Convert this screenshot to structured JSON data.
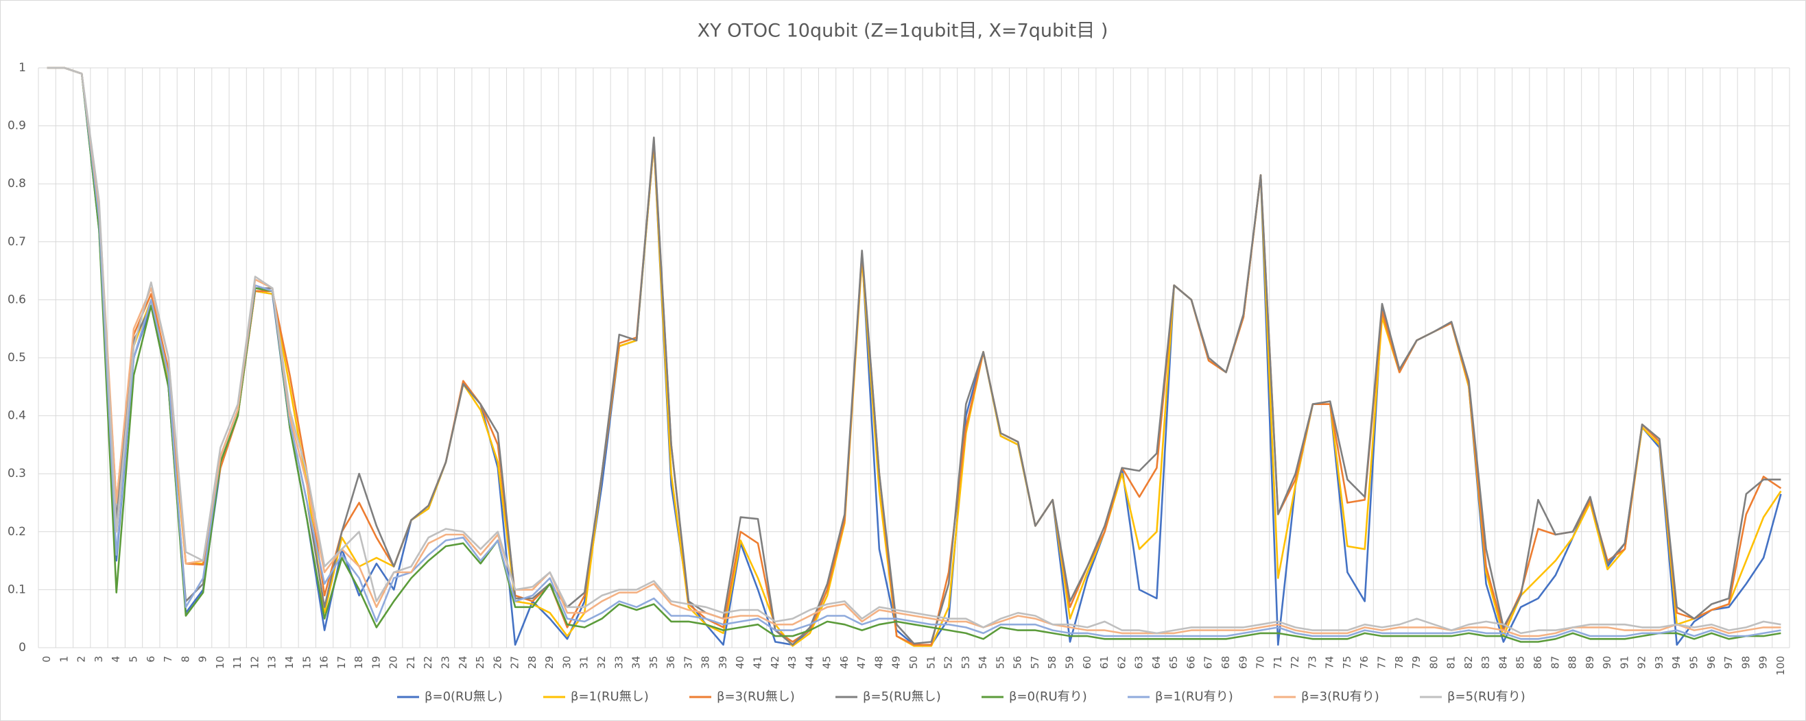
{
  "chart_data": {
    "type": "line",
    "title": "XY OTOC 10qubit (Z=1qubit目, X=7qubit目 )",
    "categories": [
      0,
      1,
      2,
      3,
      4,
      5,
      6,
      7,
      8,
      9,
      10,
      11,
      12,
      13,
      14,
      15,
      16,
      17,
      18,
      19,
      20,
      21,
      22,
      23,
      24,
      25,
      26,
      27,
      28,
      29,
      30,
      31,
      32,
      33,
      34,
      35,
      36,
      37,
      38,
      39,
      40,
      41,
      42,
      43,
      44,
      45,
      46,
      47,
      48,
      49,
      50,
      51,
      52,
      53,
      54,
      55,
      56,
      57,
      58,
      59,
      60,
      61,
      62,
      63,
      64,
      65,
      66,
      67,
      68,
      69,
      70,
      71,
      72,
      73,
      74,
      75,
      76,
      77,
      78,
      79,
      80,
      81,
      82,
      83,
      84,
      85,
      86,
      87,
      88,
      89,
      90,
      91,
      92,
      93,
      94,
      95,
      96,
      97,
      98,
      99,
      100
    ],
    "ylim": [
      0,
      1
    ],
    "yticks": [
      0,
      0.1,
      0.2,
      0.3,
      0.4,
      0.5,
      0.6,
      0.7,
      0.8,
      0.9,
      1
    ],
    "grid": true,
    "legend": "bottom",
    "series": [
      {
        "name": "β=0(RU無し)",
        "color": "#4472c4",
        "values": [
          1,
          1,
          0.99,
          0.72,
          0.15,
          0.5,
          0.59,
          0.45,
          0.06,
          0.1,
          0.31,
          0.4,
          0.615,
          0.61,
          0.38,
          0.22,
          0.03,
          0.17,
          0.09,
          0.145,
          0.1,
          0.22,
          0.24,
          0.32,
          0.455,
          0.42,
          0.31,
          0.005,
          0.08,
          0.05,
          0.015,
          0.08,
          0.28,
          0.52,
          0.53,
          0.87,
          0.28,
          0.08,
          0.04,
          0.005,
          0.18,
          0.1,
          0.01,
          0.005,
          0.03,
          0.1,
          0.22,
          0.68,
          0.17,
          0.03,
          0.005,
          0.005,
          0.05,
          0.4,
          0.51,
          0.365,
          0.35,
          0.21,
          0.255,
          0.01,
          0.12,
          0.2,
          0.31,
          0.1,
          0.085,
          0.625,
          0.6,
          0.495,
          0.475,
          0.57,
          0.815,
          0.005,
          0.28,
          0.42,
          0.42,
          0.13,
          0.08,
          0.59,
          0.475,
          0.53,
          0.545,
          0.56,
          0.45,
          0.11,
          0.01,
          0.07,
          0.085,
          0.125,
          0.19,
          0.26,
          0.14,
          0.18,
          0.38,
          0.345,
          0.005,
          0.045,
          0.065,
          0.07,
          0.11,
          0.155,
          0.265
        ]
      },
      {
        "name": "β=1(RU無し)",
        "color": "#ffc000",
        "values": [
          1,
          1,
          0.99,
          0.73,
          0.2,
          0.52,
          0.6,
          0.46,
          0.145,
          0.145,
          0.31,
          0.4,
          0.615,
          0.61,
          0.45,
          0.28,
          0.06,
          0.19,
          0.14,
          0.155,
          0.14,
          0.22,
          0.24,
          0.32,
          0.455,
          0.41,
          0.32,
          0.08,
          0.075,
          0.06,
          0.02,
          0.06,
          0.3,
          0.52,
          0.53,
          0.87,
          0.3,
          0.07,
          0.04,
          0.025,
          0.185,
          0.12,
          0.04,
          0.003,
          0.025,
          0.09,
          0.215,
          0.67,
          0.27,
          0.02,
          0.003,
          0.003,
          0.07,
          0.37,
          0.51,
          0.365,
          0.35,
          0.21,
          0.255,
          0.05,
          0.13,
          0.2,
          0.3,
          0.17,
          0.2,
          0.625,
          0.6,
          0.495,
          0.475,
          0.57,
          0.815,
          0.12,
          0.28,
          0.42,
          0.42,
          0.175,
          0.17,
          0.57,
          0.475,
          0.53,
          0.545,
          0.56,
          0.45,
          0.13,
          0.02,
          0.09,
          0.12,
          0.15,
          0.19,
          0.25,
          0.135,
          0.17,
          0.38,
          0.35,
          0.04,
          0.05,
          0.065,
          0.075,
          0.15,
          0.225,
          0.27
        ]
      },
      {
        "name": "β=3(RU無し)",
        "color": "#ed7d31",
        "values": [
          1,
          1,
          0.99,
          0.74,
          0.25,
          0.54,
          0.61,
          0.48,
          0.145,
          0.143,
          0.31,
          0.4,
          0.615,
          0.615,
          0.47,
          0.3,
          0.09,
          0.2,
          0.25,
          0.19,
          0.14,
          0.22,
          0.245,
          0.32,
          0.46,
          0.42,
          0.35,
          0.09,
          0.08,
          0.11,
          0.035,
          0.09,
          0.3,
          0.525,
          0.535,
          0.875,
          0.35,
          0.075,
          0.05,
          0.035,
          0.2,
          0.18,
          0.03,
          0.01,
          0.03,
          0.1,
          0.22,
          0.68,
          0.3,
          0.02,
          0.005,
          0.005,
          0.13,
          0.38,
          0.51,
          0.37,
          0.355,
          0.21,
          0.255,
          0.07,
          0.14,
          0.2,
          0.31,
          0.26,
          0.31,
          0.625,
          0.6,
          0.495,
          0.475,
          0.57,
          0.815,
          0.23,
          0.29,
          0.42,
          0.42,
          0.25,
          0.255,
          0.58,
          0.475,
          0.53,
          0.545,
          0.56,
          0.455,
          0.14,
          0.03,
          0.095,
          0.205,
          0.195,
          0.2,
          0.255,
          0.15,
          0.17,
          0.385,
          0.355,
          0.06,
          0.05,
          0.065,
          0.075,
          0.23,
          0.295,
          0.275
        ]
      },
      {
        "name": "β=5(RU無し)",
        "color": "#7f7f7f",
        "values": [
          1,
          1,
          0.99,
          0.75,
          0.22,
          0.53,
          0.59,
          0.45,
          0.08,
          0.11,
          0.33,
          0.41,
          0.62,
          0.62,
          0.39,
          0.25,
          0.07,
          0.2,
          0.3,
          0.21,
          0.14,
          0.22,
          0.245,
          0.32,
          0.455,
          0.42,
          0.37,
          0.085,
          0.085,
          0.11,
          0.07,
          0.095,
          0.3,
          0.54,
          0.53,
          0.88,
          0.35,
          0.08,
          0.06,
          0.05,
          0.225,
          0.222,
          0.03,
          0.005,
          0.035,
          0.11,
          0.23,
          0.685,
          0.3,
          0.04,
          0.007,
          0.01,
          0.11,
          0.42,
          0.51,
          0.37,
          0.355,
          0.21,
          0.255,
          0.08,
          0.14,
          0.21,
          0.31,
          0.305,
          0.335,
          0.625,
          0.6,
          0.5,
          0.475,
          0.575,
          0.815,
          0.23,
          0.3,
          0.42,
          0.425,
          0.29,
          0.26,
          0.593,
          0.48,
          0.53,
          0.545,
          0.562,
          0.46,
          0.17,
          0.035,
          0.09,
          0.255,
          0.195,
          0.2,
          0.26,
          0.145,
          0.18,
          0.385,
          0.36,
          0.07,
          0.05,
          0.075,
          0.085,
          0.265,
          0.29,
          0.29
        ]
      },
      {
        "name": "β=0(RU有り)",
        "color": "#5b9b3a",
        "values": [
          1,
          1,
          0.99,
          0.72,
          0.095,
          0.47,
          0.59,
          0.45,
          0.055,
          0.095,
          0.32,
          0.4,
          0.62,
          0.615,
          0.38,
          0.22,
          0.05,
          0.155,
          0.1,
          0.035,
          0.08,
          0.12,
          0.15,
          0.175,
          0.18,
          0.145,
          0.185,
          0.07,
          0.07,
          0.11,
          0.04,
          0.035,
          0.05,
          0.075,
          0.065,
          0.075,
          0.045,
          0.045,
          0.04,
          0.03,
          0.035,
          0.04,
          0.02,
          0.02,
          0.03,
          0.045,
          0.04,
          0.03,
          0.04,
          0.045,
          0.04,
          0.035,
          0.03,
          0.025,
          0.015,
          0.035,
          0.03,
          0.03,
          0.025,
          0.02,
          0.02,
          0.015,
          0.015,
          0.015,
          0.015,
          0.015,
          0.015,
          0.015,
          0.015,
          0.02,
          0.025,
          0.025,
          0.02,
          0.015,
          0.015,
          0.015,
          0.025,
          0.02,
          0.02,
          0.02,
          0.02,
          0.02,
          0.025,
          0.02,
          0.02,
          0.01,
          0.01,
          0.015,
          0.025,
          0.015,
          0.015,
          0.015,
          0.02,
          0.025,
          0.025,
          0.015,
          0.025,
          0.015,
          0.02,
          0.02,
          0.025
        ]
      },
      {
        "name": "β=1(RU有り)",
        "color": "#8faadc",
        "values": [
          1,
          1,
          0.99,
          0.74,
          0.16,
          0.5,
          0.6,
          0.47,
          0.07,
          0.12,
          0.33,
          0.41,
          0.625,
          0.615,
          0.39,
          0.25,
          0.11,
          0.16,
          0.12,
          0.045,
          0.12,
          0.13,
          0.16,
          0.185,
          0.19,
          0.15,
          0.185,
          0.08,
          0.09,
          0.12,
          0.05,
          0.045,
          0.06,
          0.08,
          0.07,
          0.085,
          0.055,
          0.055,
          0.05,
          0.04,
          0.045,
          0.05,
          0.03,
          0.03,
          0.04,
          0.055,
          0.055,
          0.04,
          0.05,
          0.05,
          0.045,
          0.04,
          0.04,
          0.035,
          0.025,
          0.04,
          0.04,
          0.04,
          0.03,
          0.025,
          0.025,
          0.02,
          0.02,
          0.02,
          0.02,
          0.02,
          0.02,
          0.02,
          0.02,
          0.025,
          0.03,
          0.035,
          0.025,
          0.02,
          0.02,
          0.02,
          0.03,
          0.025,
          0.025,
          0.025,
          0.025,
          0.025,
          0.03,
          0.025,
          0.025,
          0.015,
          0.015,
          0.02,
          0.03,
          0.02,
          0.02,
          0.02,
          0.025,
          0.025,
          0.03,
          0.02,
          0.03,
          0.02,
          0.02,
          0.025,
          0.03
        ]
      },
      {
        "name": "β=3(RU有り)",
        "color": "#f4b183",
        "values": [
          1,
          1,
          0.99,
          0.76,
          0.25,
          0.55,
          0.62,
          0.5,
          0.145,
          0.15,
          0.33,
          0.41,
          0.635,
          0.62,
          0.4,
          0.28,
          0.13,
          0.17,
          0.14,
          0.07,
          0.13,
          0.13,
          0.18,
          0.195,
          0.195,
          0.16,
          0.195,
          0.1,
          0.1,
          0.13,
          0.06,
          0.06,
          0.08,
          0.095,
          0.095,
          0.11,
          0.075,
          0.065,
          0.06,
          0.05,
          0.055,
          0.055,
          0.04,
          0.04,
          0.055,
          0.07,
          0.075,
          0.045,
          0.065,
          0.06,
          0.055,
          0.05,
          0.045,
          0.045,
          0.035,
          0.045,
          0.055,
          0.05,
          0.04,
          0.035,
          0.03,
          0.03,
          0.025,
          0.025,
          0.025,
          0.025,
          0.03,
          0.03,
          0.03,
          0.03,
          0.035,
          0.04,
          0.03,
          0.025,
          0.025,
          0.025,
          0.035,
          0.03,
          0.035,
          0.035,
          0.035,
          0.03,
          0.035,
          0.035,
          0.03,
          0.02,
          0.02,
          0.025,
          0.035,
          0.035,
          0.035,
          0.03,
          0.03,
          0.03,
          0.04,
          0.03,
          0.035,
          0.025,
          0.03,
          0.035,
          0.035
        ]
      },
      {
        "name": "β=5(RU有り)",
        "color": "#bfbfbf",
        "values": [
          1,
          1,
          0.99,
          0.77,
          0.2,
          0.52,
          0.63,
          0.5,
          0.165,
          0.15,
          0.345,
          0.42,
          0.64,
          0.62,
          0.41,
          0.3,
          0.14,
          0.17,
          0.2,
          0.08,
          0.13,
          0.14,
          0.19,
          0.205,
          0.2,
          0.17,
          0.2,
          0.1,
          0.105,
          0.13,
          0.07,
          0.07,
          0.09,
          0.1,
          0.1,
          0.115,
          0.08,
          0.075,
          0.07,
          0.06,
          0.065,
          0.065,
          0.045,
          0.05,
          0.065,
          0.075,
          0.08,
          0.05,
          0.07,
          0.065,
          0.06,
          0.055,
          0.05,
          0.05,
          0.035,
          0.05,
          0.06,
          0.055,
          0.04,
          0.04,
          0.035,
          0.045,
          0.03,
          0.03,
          0.025,
          0.03,
          0.035,
          0.035,
          0.035,
          0.035,
          0.04,
          0.045,
          0.035,
          0.03,
          0.03,
          0.03,
          0.04,
          0.035,
          0.04,
          0.05,
          0.04,
          0.03,
          0.04,
          0.045,
          0.04,
          0.025,
          0.03,
          0.03,
          0.035,
          0.04,
          0.04,
          0.04,
          0.035,
          0.035,
          0.04,
          0.035,
          0.04,
          0.03,
          0.035,
          0.045,
          0.04
        ]
      }
    ]
  }
}
